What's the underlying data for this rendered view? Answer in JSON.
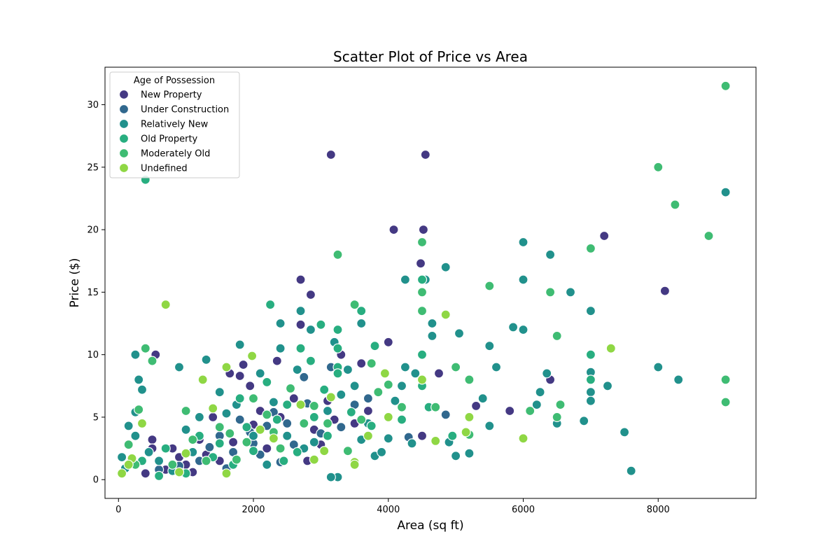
{
  "chart_data": {
    "type": "scatter",
    "title": "Scatter Plot of Price vs Area",
    "xlabel": "Area (sq ft)",
    "ylabel": "Price ($)",
    "xlim": [
      -200,
      9450
    ],
    "ylim": [
      -1.5,
      33
    ],
    "xticks": [
      0,
      2000,
      4000,
      6000,
      8000
    ],
    "yticks": [
      0,
      5,
      10,
      15,
      20,
      25,
      30
    ],
    "grid": false,
    "legend": {
      "title": "Age of Possession",
      "placement": "top-left"
    },
    "series": [
      {
        "name": "New Property",
        "color": "#443983",
        "points": [
          [
            3150,
            26
          ],
          [
            4550,
            26
          ],
          [
            4080,
            20
          ],
          [
            4520,
            20
          ],
          [
            7200,
            19.5
          ],
          [
            4480,
            17.3
          ],
          [
            8100,
            15.1
          ],
          [
            2700,
            16
          ],
          [
            2850,
            14.8
          ],
          [
            6400,
            8
          ],
          [
            5800,
            5.5
          ],
          [
            5300,
            5.9
          ],
          [
            4000,
            11
          ],
          [
            3600,
            9.3
          ],
          [
            2700,
            12.4
          ],
          [
            2350,
            9.5
          ],
          [
            3100,
            6.3
          ],
          [
            1850,
            9.2
          ],
          [
            1950,
            7.5
          ],
          [
            1650,
            8.5
          ],
          [
            1800,
            8.3
          ],
          [
            1400,
            5
          ],
          [
            1200,
            3.2
          ],
          [
            1300,
            2
          ],
          [
            900,
            1.8
          ],
          [
            1000,
            1.2
          ],
          [
            500,
            3.2
          ],
          [
            500,
            2.5
          ],
          [
            550,
            10
          ],
          [
            700,
            0.8
          ],
          [
            400,
            0.5
          ],
          [
            2200,
            2.5
          ],
          [
            2500,
            3.5
          ],
          [
            3000,
            2.8
          ],
          [
            3500,
            4.5
          ],
          [
            2800,
            1.5
          ],
          [
            2600,
            6.5
          ],
          [
            1700,
            3
          ],
          [
            1500,
            1.5
          ],
          [
            800,
            2.5
          ],
          [
            2100,
            5.5
          ],
          [
            3200,
            4.8
          ],
          [
            4500,
            3.5
          ],
          [
            4750,
            8.5
          ],
          [
            3300,
            10
          ],
          [
            2400,
            5
          ],
          [
            1100,
            0.6
          ],
          [
            2000,
            4.4
          ],
          [
            2900,
            4
          ],
          [
            3700,
            5.5
          ]
        ]
      },
      {
        "name": "Under Construction",
        "color": "#31688e",
        "points": [
          [
            2750,
            8.2
          ],
          [
            3150,
            9
          ],
          [
            1800,
            4.8
          ],
          [
            2300,
            5.4
          ],
          [
            1500,
            3.5
          ],
          [
            1700,
            2.2
          ],
          [
            2000,
            2.9
          ],
          [
            2500,
            4.5
          ],
          [
            3000,
            3.7
          ],
          [
            3500,
            6
          ],
          [
            1200,
            1.5
          ],
          [
            900,
            1.1
          ],
          [
            600,
            0.8
          ],
          [
            4300,
            3.4
          ],
          [
            4850,
            5.2
          ],
          [
            2600,
            2.8
          ],
          [
            2100,
            2
          ],
          [
            3300,
            4.2
          ],
          [
            1350,
            2.6
          ],
          [
            2800,
            6.1
          ],
          [
            1950,
            3.8
          ],
          [
            2400,
            1.4
          ],
          [
            3700,
            6.5
          ],
          [
            1600,
            0.9
          ],
          [
            2200,
            4.3
          ]
        ]
      },
      {
        "name": "Relatively New",
        "color": "#21918c",
        "points": [
          [
            9000,
            23
          ],
          [
            6400,
            18
          ],
          [
            6000,
            19
          ],
          [
            6000,
            16
          ],
          [
            6700,
            15
          ],
          [
            7000,
            13.5
          ],
          [
            5850,
            12.2
          ],
          [
            6000,
            12
          ],
          [
            8000,
            9
          ],
          [
            8300,
            8
          ],
          [
            7000,
            8.6
          ],
          [
            7000,
            7
          ],
          [
            7250,
            7.5
          ],
          [
            7000,
            6.3
          ],
          [
            6900,
            4.7
          ],
          [
            7500,
            3.8
          ],
          [
            7600,
            0.7
          ],
          [
            6500,
            4.5
          ],
          [
            6350,
            8.5
          ],
          [
            6250,
            7
          ],
          [
            6200,
            6
          ],
          [
            5500,
            10.7
          ],
          [
            5600,
            9
          ],
          [
            5400,
            6.5
          ],
          [
            5500,
            4.3
          ],
          [
            5050,
            11.7
          ],
          [
            4850,
            17
          ],
          [
            4900,
            3
          ],
          [
            5000,
            1.9
          ],
          [
            5200,
            2.1
          ],
          [
            4250,
            16
          ],
          [
            4650,
            12.5
          ],
          [
            4650,
            11.5
          ],
          [
            4550,
            16
          ],
          [
            4100,
            6.3
          ],
          [
            4200,
            7.5
          ],
          [
            4250,
            9
          ],
          [
            4400,
            8.5
          ],
          [
            4350,
            2.9
          ],
          [
            3250,
            0.2
          ],
          [
            3150,
            0.2
          ],
          [
            3800,
            1.9
          ],
          [
            3900,
            2.2
          ],
          [
            3600,
            12.5
          ],
          [
            2700,
            13.5
          ],
          [
            2400,
            12.5
          ],
          [
            2400,
            10.5
          ],
          [
            1800,
            10.8
          ],
          [
            1300,
            9.6
          ],
          [
            900,
            9
          ],
          [
            250,
            10
          ],
          [
            300,
            8
          ],
          [
            350,
            7.2
          ],
          [
            250,
            5.4
          ],
          [
            150,
            4.3
          ],
          [
            250,
            3.5
          ],
          [
            50,
            1.8
          ],
          [
            100,
            0.9
          ],
          [
            450,
            2.2
          ],
          [
            600,
            1.5
          ],
          [
            1000,
            4
          ],
          [
            1200,
            5
          ],
          [
            1500,
            7
          ],
          [
            1750,
            6
          ],
          [
            2100,
            8.5
          ],
          [
            2300,
            6.2
          ],
          [
            2500,
            3.5
          ],
          [
            2750,
            2.5
          ],
          [
            2900,
            3
          ],
          [
            3100,
            5.5
          ],
          [
            3300,
            6.8
          ],
          [
            3500,
            7.5
          ],
          [
            3600,
            3.2
          ],
          [
            3700,
            4.5
          ],
          [
            4000,
            3.3
          ],
          [
            1100,
            2.2
          ],
          [
            800,
            0.7
          ],
          [
            2650,
            8.8
          ],
          [
            2850,
            12
          ],
          [
            3200,
            11
          ],
          [
            3400,
            8.8
          ],
          [
            1600,
            5.3
          ],
          [
            2000,
            3.5
          ],
          [
            2200,
            1.2
          ]
        ]
      },
      {
        "name": "Old Property",
        "color": "#28ae80",
        "points": [
          [
            400,
            24
          ],
          [
            2250,
            14
          ],
          [
            4500,
            16
          ],
          [
            4500,
            10
          ],
          [
            4500,
            7.5
          ],
          [
            4600,
            5.8
          ],
          [
            3600,
            13.5
          ],
          [
            3250,
            12
          ],
          [
            3250,
            10.5
          ],
          [
            3250,
            9
          ],
          [
            3250,
            8.5
          ],
          [
            2700,
            10.5
          ],
          [
            2850,
            9.5
          ],
          [
            3000,
            12.4
          ],
          [
            4950,
            3.5
          ],
          [
            3800,
            10.7
          ],
          [
            7000,
            10
          ],
          [
            7000,
            8
          ],
          [
            1800,
            6.5
          ],
          [
            2200,
            7.8
          ],
          [
            1500,
            2.9
          ],
          [
            1200,
            3.5
          ],
          [
            1700,
            1.2
          ],
          [
            700,
            2.5
          ],
          [
            350,
            1.5
          ],
          [
            600,
            0.3
          ],
          [
            2500,
            6
          ],
          [
            2900,
            5
          ],
          [
            3100,
            3.5
          ],
          [
            3450,
            5.4
          ],
          [
            3750,
            4.3
          ],
          [
            2000,
            2.3
          ],
          [
            1400,
            1.8
          ],
          [
            2650,
            2.2
          ],
          [
            2350,
            4.8
          ],
          [
            4200,
            4.8
          ],
          [
            1000,
            0.5
          ],
          [
            1900,
            4.2
          ],
          [
            3050,
            7.2
          ],
          [
            2450,
            1.5
          ]
        ]
      },
      {
        "name": "Moderately Old",
        "color": "#3fbc73",
        "points": [
          [
            9000,
            31.5
          ],
          [
            8000,
            25
          ],
          [
            8250,
            22
          ],
          [
            8750,
            19.5
          ],
          [
            7000,
            18.5
          ],
          [
            5500,
            15.5
          ],
          [
            6400,
            15
          ],
          [
            4500,
            19
          ],
          [
            4500,
            15
          ],
          [
            4500,
            13.5
          ],
          [
            6500,
            11.5
          ],
          [
            3250,
            18
          ],
          [
            3500,
            14
          ],
          [
            2750,
            4.5
          ],
          [
            1300,
            1.5
          ],
          [
            1900,
            3
          ],
          [
            2400,
            2.5
          ],
          [
            9000,
            8
          ],
          [
            9000,
            6.2
          ],
          [
            6550,
            6
          ],
          [
            6500,
            5
          ],
          [
            6100,
            5.5
          ],
          [
            4700,
            5.8
          ],
          [
            5000,
            9
          ],
          [
            3750,
            9.3
          ],
          [
            3850,
            7
          ],
          [
            4000,
            7.6
          ],
          [
            1000,
            5.5
          ],
          [
            800,
            1.2
          ],
          [
            250,
            1.2
          ],
          [
            400,
            10.5
          ],
          [
            500,
            9.5
          ],
          [
            300,
            5.6
          ],
          [
            150,
            2.8
          ],
          [
            1500,
            4.2
          ],
          [
            2000,
            6.5
          ],
          [
            2550,
            7.3
          ],
          [
            3100,
            4.5
          ],
          [
            3400,
            2.3
          ],
          [
            2200,
            5.2
          ],
          [
            1750,
            1.6
          ],
          [
            1100,
            3.2
          ],
          [
            2900,
            5.9
          ],
          [
            3600,
            4.8
          ],
          [
            5200,
            8
          ],
          [
            5200,
            3.6
          ],
          [
            4200,
            5.8
          ],
          [
            1650,
            3.7
          ],
          [
            2300,
            3.8
          ]
        ]
      },
      {
        "name": "Undefined",
        "color": "#8fd744",
        "points": [
          [
            700,
            14
          ],
          [
            1250,
            8
          ],
          [
            1600,
            9
          ],
          [
            1980,
            9.9
          ],
          [
            350,
            4.5
          ],
          [
            200,
            1.7
          ],
          [
            50,
            0.5
          ],
          [
            150,
            1.2
          ],
          [
            4500,
            8
          ],
          [
            4850,
            13.2
          ],
          [
            7300,
            10.5
          ],
          [
            6000,
            3.3
          ],
          [
            5200,
            5
          ],
          [
            5150,
            3.8
          ],
          [
            4700,
            3.1
          ],
          [
            4000,
            5
          ],
          [
            3500,
            1.4
          ],
          [
            3500,
            1.2
          ],
          [
            3700,
            3.5
          ],
          [
            3150,
            6.6
          ],
          [
            2700,
            6
          ],
          [
            2300,
            3.3
          ],
          [
            1400,
            5.7
          ],
          [
            1600,
            0.5
          ],
          [
            900,
            0.6
          ],
          [
            2900,
            1.6
          ],
          [
            3050,
            2.3
          ],
          [
            3950,
            8.5
          ],
          [
            2100,
            4
          ],
          [
            1000,
            2.1
          ]
        ]
      }
    ]
  }
}
